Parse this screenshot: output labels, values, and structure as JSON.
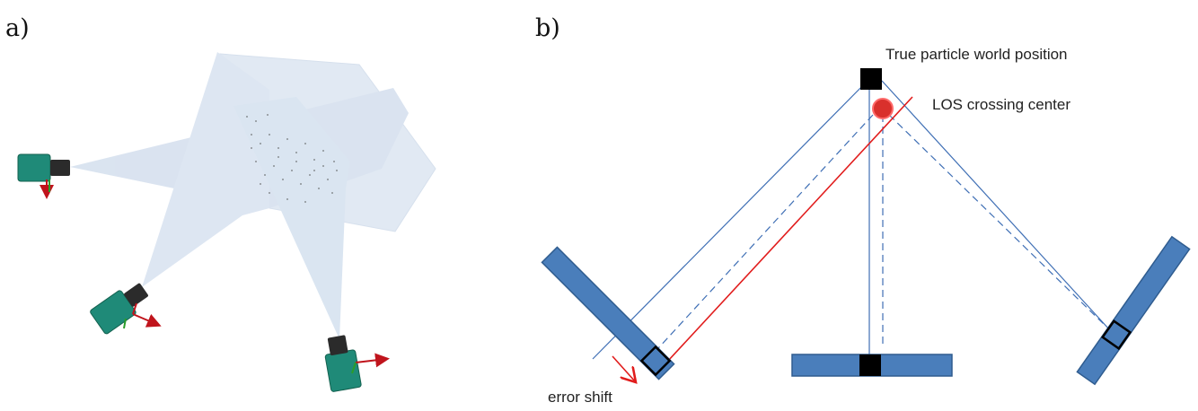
{
  "panels": {
    "a": {
      "label": "a)"
    },
    "b": {
      "label": "b)",
      "annotations": {
        "true_position": "True particle world position",
        "los_center": "LOS crossing center",
        "error_shift": "error shift"
      }
    }
  },
  "colors": {
    "sensor_fill": "#4a7ebb",
    "sensor_stroke": "#2f5c8f",
    "los_line": "#3f6fb5",
    "error_line": "#e11c1c",
    "particle": "#000000",
    "los_marker": "#d9302c",
    "camera_body": "#1f8a78",
    "camera_lens": "#2b2b2b",
    "frustum": "#c9d8ea",
    "axis_red": "#c0141c",
    "axis_green": "#2a9d2a"
  },
  "icons": {
    "camera": "camera-icon",
    "particle": "particle-square",
    "los_marker": "los-circle-marker"
  }
}
